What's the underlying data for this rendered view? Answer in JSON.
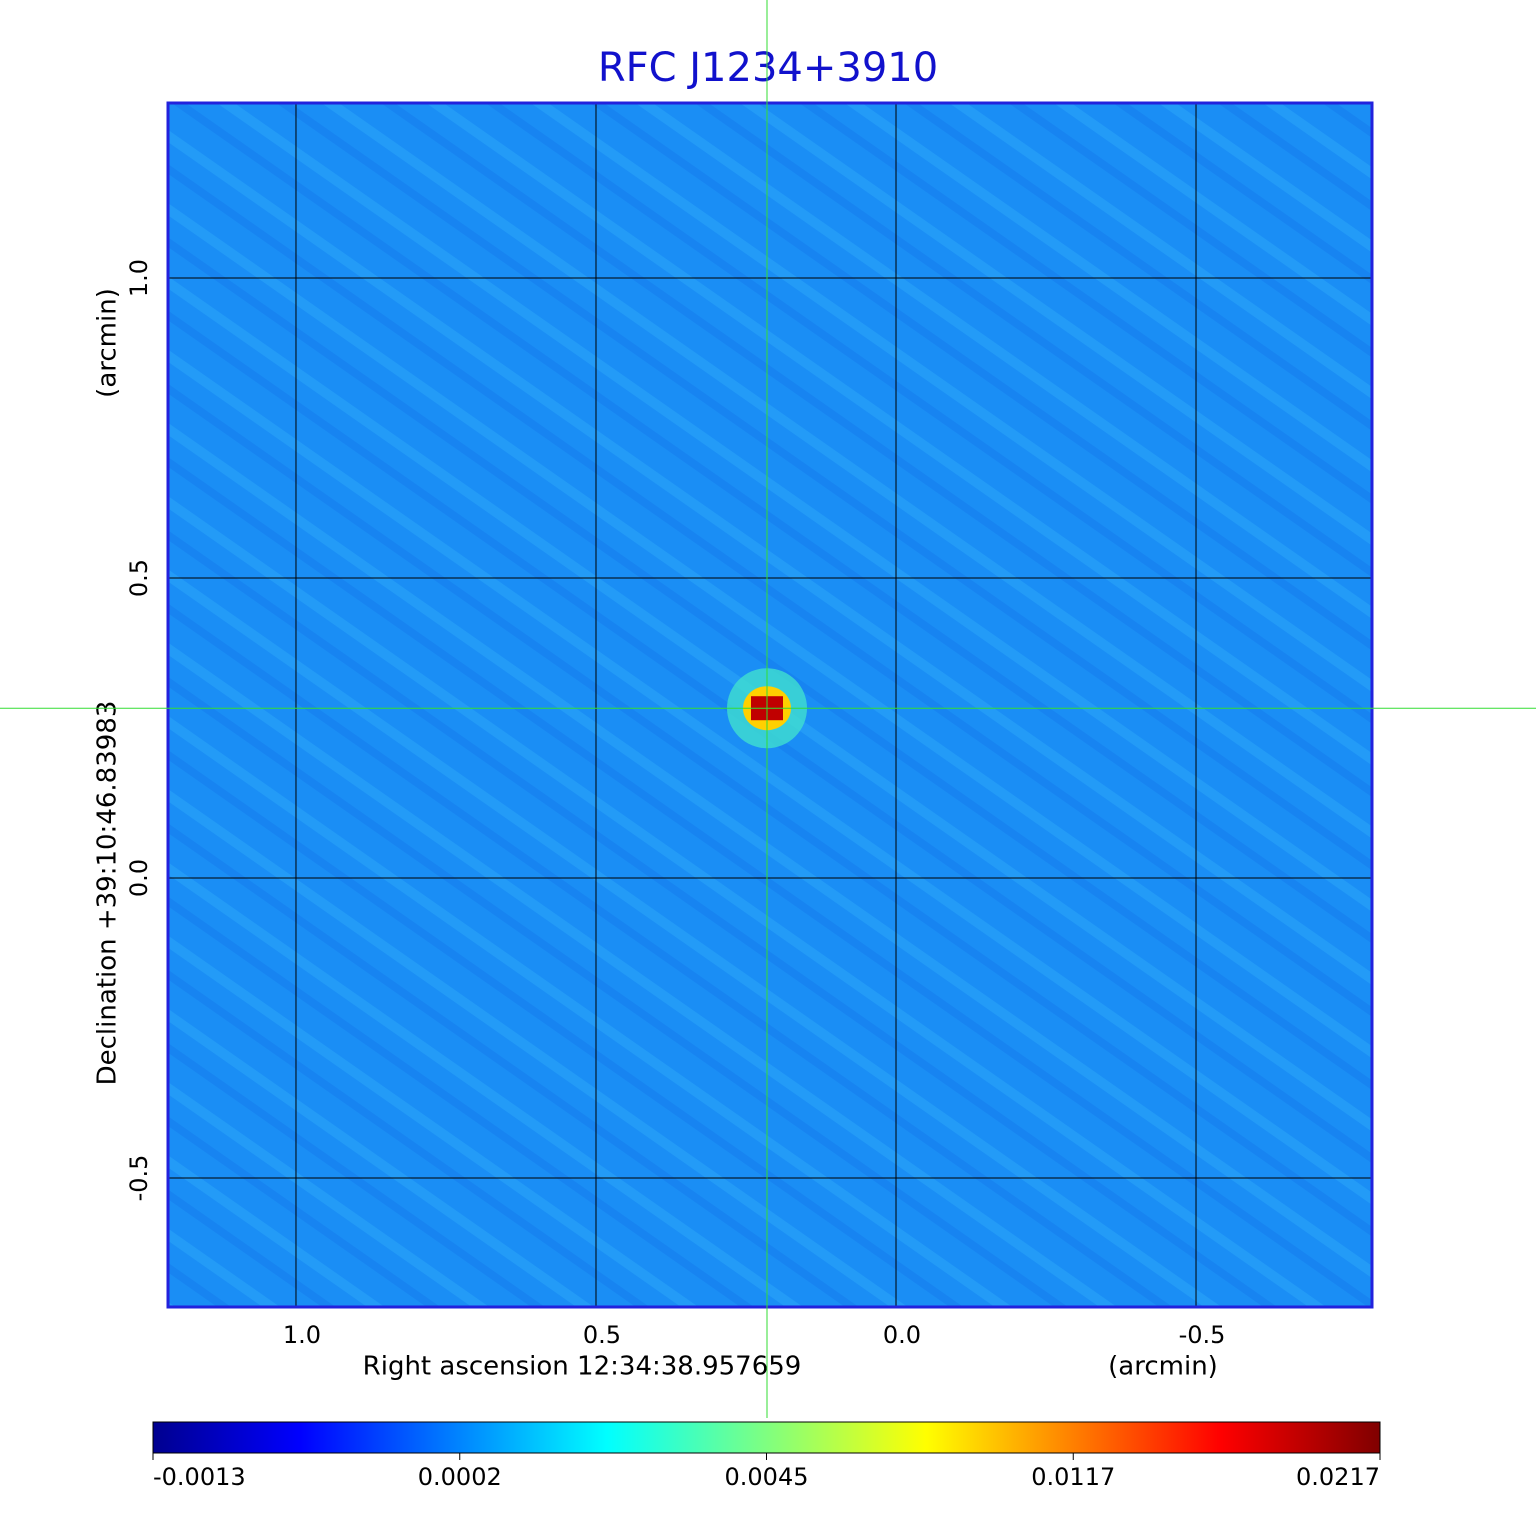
{
  "chart_data": {
    "type": "heatmap",
    "title": "RFC J1234+3910",
    "x_label": "Right ascension  12:34:38.957659",
    "x_unit": "(arcmin)",
    "y_label": "Declination  +39:10:46.83983",
    "y_unit": "(arcmin)",
    "xlim": [
      1.2133,
      -0.7933
    ],
    "ylim": [
      -0.715,
      1.2917
    ],
    "xticks": [
      {
        "value": 1,
        "label": "1.0"
      },
      {
        "value": 0.5,
        "label": "0.5"
      },
      {
        "value": 0,
        "label": "0.0"
      },
      -0.5
    ],
    "yticks": [
      {
        "value": 1,
        "label": "1.0"
      },
      {
        "value": 0.5,
        "label": "0.5"
      },
      {
        "value": 0,
        "label": "0.0"
      },
      -0.5
    ],
    "grid": true,
    "crosshair": {
      "x": 0.215,
      "y": 0.283
    },
    "peak": {
      "x": 0.215,
      "y": 0.283,
      "value": 0.0217
    },
    "colorbar_ticks": [
      -0.0013,
      0.0002,
      0.0045,
      0.0117,
      0.0217
    ]
  }
}
